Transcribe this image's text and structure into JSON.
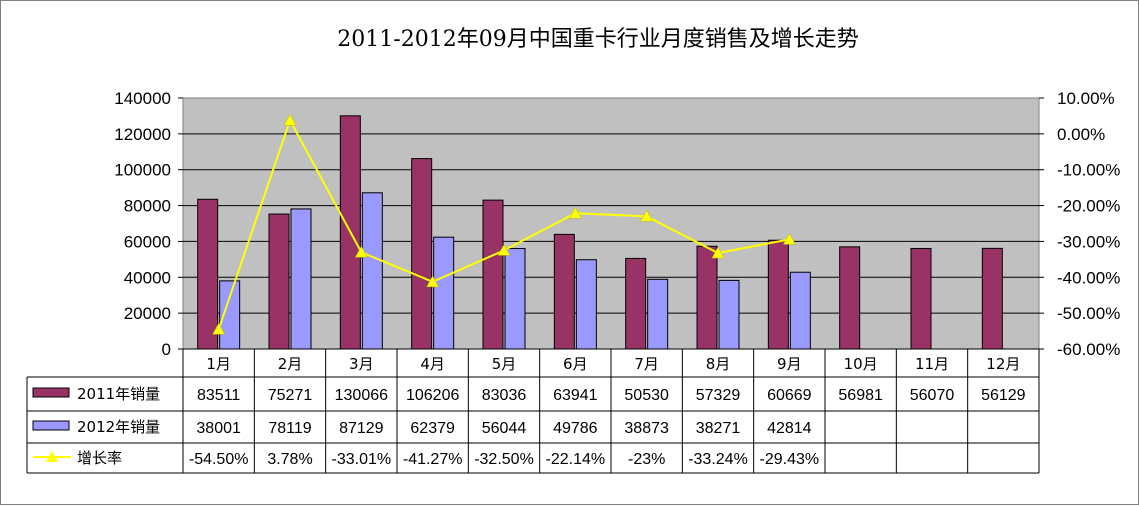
{
  "chart_data": {
    "type": "bar",
    "title": "2011-2012年09月中国重卡行业月度销售及增长走势",
    "categories": [
      "1月",
      "2月",
      "3月",
      "4月",
      "5月",
      "6月",
      "7月",
      "8月",
      "9月",
      "10月",
      "11月",
      "12月"
    ],
    "y_left": {
      "ylim": [
        0,
        140000
      ],
      "ticks": [
        "0",
        "20000",
        "40000",
        "60000",
        "80000",
        "100000",
        "120000",
        "140000"
      ]
    },
    "y_right": {
      "ylim": [
        -0.6,
        0.1
      ],
      "ticks": [
        "-60.00%",
        "-50.00%",
        "-40.00%",
        "-30.00%",
        "-20.00%",
        "-10.00%",
        "0.00%",
        "10.00%"
      ]
    },
    "grid": true,
    "legend": "data-table-left",
    "series": [
      {
        "name": "2011年销量",
        "type": "bar",
        "color": "#993366",
        "values": [
          83511,
          75271,
          130066,
          106206,
          83036,
          63941,
          50530,
          57329,
          60669,
          56981,
          56070,
          56129
        ],
        "labels": [
          "83511",
          "75271",
          "130066",
          "106206",
          "83036",
          "63941",
          "50530",
          "57329",
          "60669",
          "56981",
          "56070",
          "56129"
        ]
      },
      {
        "name": "2012年销量",
        "type": "bar",
        "color": "#9999ff",
        "values": [
          38001,
          78119,
          87129,
          62379,
          56044,
          49786,
          38873,
          38271,
          42814,
          null,
          null,
          null
        ],
        "labels": [
          "38001",
          "78119",
          "87129",
          "62379",
          "56044",
          "49786",
          "38873",
          "38271",
          "42814",
          "",
          "",
          ""
        ]
      },
      {
        "name": "增长率",
        "type": "line",
        "axis": "right",
        "color": "#ffff00",
        "values": [
          -0.545,
          0.0378,
          -0.3301,
          -0.4127,
          -0.325,
          -0.2214,
          -0.23,
          -0.3324,
          -0.2943,
          null,
          null,
          null
        ],
        "labels": [
          "-54.50%",
          "3.78%",
          "-33.01%",
          "-41.27%",
          "-32.50%",
          "-22.14%",
          "-23%",
          "-33.24%",
          "-29.43%",
          "",
          "",
          ""
        ]
      }
    ]
  }
}
